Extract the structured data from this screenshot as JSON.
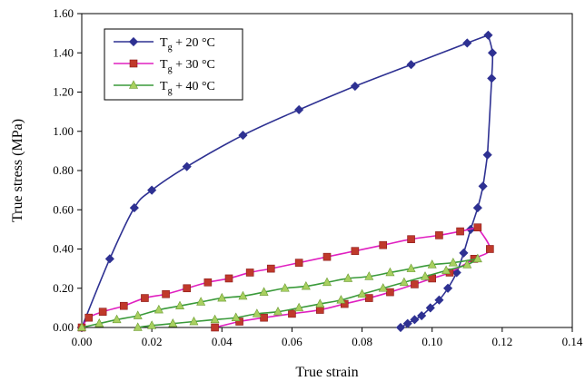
{
  "chart_data": {
    "type": "line",
    "xlabel": "True strain",
    "ylabel": "True stress (MPa)",
    "xlim": [
      0,
      0.14
    ],
    "ylim": [
      0,
      1.6
    ],
    "x_ticks": [
      "0.00",
      "0.02",
      "0.04",
      "0.06",
      "0.08",
      "0.10",
      "0.12",
      "0.14"
    ],
    "y_ticks": [
      "0.00",
      "0.20",
      "0.40",
      "0.60",
      "0.80",
      "1.00",
      "1.20",
      "1.40",
      "1.60"
    ],
    "grid": false,
    "legend_position": "top-left",
    "series": [
      {
        "name": "Tg + 20 °C",
        "legend_main": "T",
        "legend_sub": "g",
        "legend_rest": " + 20 °C",
        "color": "#2e3192",
        "marker": "diamond",
        "loading": [
          [
            0.0,
            0.0
          ],
          [
            0.008,
            0.35
          ],
          [
            0.015,
            0.61
          ],
          [
            0.02,
            0.7
          ],
          [
            0.03,
            0.82
          ],
          [
            0.046,
            0.98
          ],
          [
            0.062,
            1.11
          ],
          [
            0.078,
            1.23
          ],
          [
            0.094,
            1.34
          ],
          [
            0.11,
            1.45
          ],
          [
            0.116,
            1.49
          ]
        ],
        "peak": [
          [
            0.116,
            1.49
          ],
          [
            0.1172,
            1.4
          ],
          [
            0.117,
            1.27
          ],
          [
            0.1158,
            0.88
          ]
        ],
        "unloading": [
          [
            0.1158,
            0.88
          ],
          [
            0.1145,
            0.72
          ],
          [
            0.113,
            0.61
          ],
          [
            0.111,
            0.5
          ],
          [
            0.109,
            0.38
          ],
          [
            0.107,
            0.28
          ],
          [
            0.1045,
            0.2
          ],
          [
            0.102,
            0.14
          ],
          [
            0.0995,
            0.1
          ],
          [
            0.097,
            0.06
          ],
          [
            0.095,
            0.04
          ],
          [
            0.093,
            0.02
          ],
          [
            0.091,
            0.0
          ]
        ]
      },
      {
        "name": "Tg + 30 °C",
        "legend_main": "T",
        "legend_sub": "g",
        "legend_rest": " + 30 °C",
        "color": "#e020c0",
        "marker": "square",
        "marker_color": "#c0392b",
        "loading": [
          [
            0.0,
            0.0
          ],
          [
            0.002,
            0.05
          ],
          [
            0.006,
            0.08
          ],
          [
            0.012,
            0.11
          ],
          [
            0.018,
            0.15
          ],
          [
            0.024,
            0.17
          ],
          [
            0.03,
            0.2
          ],
          [
            0.036,
            0.23
          ],
          [
            0.042,
            0.25
          ],
          [
            0.048,
            0.28
          ],
          [
            0.054,
            0.3
          ],
          [
            0.062,
            0.33
          ],
          [
            0.07,
            0.36
          ],
          [
            0.078,
            0.39
          ],
          [
            0.086,
            0.42
          ],
          [
            0.094,
            0.45
          ],
          [
            0.102,
            0.47
          ],
          [
            0.108,
            0.49
          ],
          [
            0.113,
            0.51
          ]
        ],
        "unloading": [
          [
            0.113,
            0.51
          ],
          [
            0.1165,
            0.4
          ],
          [
            0.112,
            0.35
          ],
          [
            0.105,
            0.28
          ],
          [
            0.1,
            0.25
          ],
          [
            0.095,
            0.22
          ],
          [
            0.088,
            0.18
          ],
          [
            0.082,
            0.15
          ],
          [
            0.075,
            0.12
          ],
          [
            0.068,
            0.09
          ],
          [
            0.06,
            0.07
          ],
          [
            0.052,
            0.05
          ],
          [
            0.045,
            0.03
          ],
          [
            0.038,
            0.0
          ]
        ]
      },
      {
        "name": "Tg + 40 °C",
        "legend_main": "T",
        "legend_sub": "g",
        "legend_rest": " + 40 °C",
        "color": "#3a9a3a",
        "marker": "triangle",
        "marker_color": "#a8d060",
        "loading": [
          [
            0.0,
            0.0
          ],
          [
            0.005,
            0.02
          ],
          [
            0.01,
            0.04
          ],
          [
            0.016,
            0.06
          ],
          [
            0.022,
            0.09
          ],
          [
            0.028,
            0.11
          ],
          [
            0.034,
            0.13
          ],
          [
            0.04,
            0.15
          ],
          [
            0.046,
            0.16
          ],
          [
            0.052,
            0.18
          ],
          [
            0.058,
            0.2
          ],
          [
            0.064,
            0.21
          ],
          [
            0.07,
            0.23
          ],
          [
            0.076,
            0.25
          ],
          [
            0.082,
            0.26
          ],
          [
            0.088,
            0.28
          ],
          [
            0.094,
            0.3
          ],
          [
            0.1,
            0.32
          ],
          [
            0.106,
            0.33
          ],
          [
            0.113,
            0.35
          ]
        ],
        "unloading": [
          [
            0.113,
            0.35
          ],
          [
            0.11,
            0.32
          ],
          [
            0.104,
            0.29
          ],
          [
            0.098,
            0.26
          ],
          [
            0.092,
            0.23
          ],
          [
            0.086,
            0.2
          ],
          [
            0.08,
            0.17
          ],
          [
            0.074,
            0.14
          ],
          [
            0.068,
            0.12
          ],
          [
            0.062,
            0.1
          ],
          [
            0.056,
            0.08
          ],
          [
            0.05,
            0.07
          ],
          [
            0.044,
            0.05
          ],
          [
            0.038,
            0.04
          ],
          [
            0.032,
            0.03
          ],
          [
            0.026,
            0.02
          ],
          [
            0.02,
            0.01
          ],
          [
            0.016,
            0.0
          ]
        ]
      }
    ]
  }
}
